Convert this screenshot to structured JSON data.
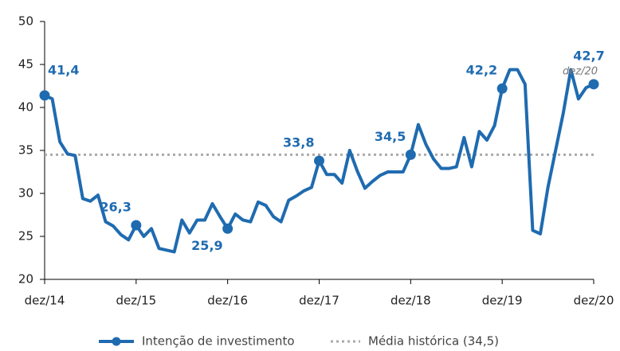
{
  "chart_data": {
    "type": "line",
    "categories": [
      "dez/14",
      null,
      null,
      null,
      null,
      null,
      null,
      null,
      null,
      null,
      null,
      null,
      "dez/15",
      null,
      null,
      null,
      null,
      null,
      null,
      null,
      null,
      null,
      null,
      null,
      "dez/16",
      null,
      null,
      null,
      null,
      null,
      null,
      null,
      null,
      null,
      null,
      null,
      "dez/17",
      null,
      null,
      null,
      null,
      null,
      null,
      null,
      null,
      null,
      null,
      null,
      "dez/18",
      null,
      null,
      null,
      null,
      null,
      null,
      null,
      null,
      null,
      null,
      null,
      "dez/19",
      null,
      null,
      null,
      null,
      null,
      null,
      null,
      null,
      null,
      null,
      null,
      "dez/20"
    ],
    "series": [
      {
        "name": "Intenção de investimento",
        "color": "#1f6bb0",
        "values": [
          41.4,
          41,
          36,
          34.6,
          34.4,
          29.4,
          29.1,
          29.8,
          26.7,
          26.2,
          25.2,
          24.6,
          26.3,
          25.0,
          25.9,
          23.6,
          23.4,
          23.2,
          26.9,
          25.4,
          26.9,
          26.9,
          28.8,
          27.3,
          25.9,
          27.6,
          26.9,
          26.7,
          29.0,
          28.6,
          27.3,
          26.7,
          29.2,
          29.7,
          30.3,
          30.7,
          33.8,
          32.2,
          32.2,
          31.2,
          35.0,
          32.6,
          30.6,
          31.4,
          32.1,
          32.5,
          32.5,
          32.5,
          34.5,
          38.0,
          35.7,
          34.0,
          32.9,
          32.9,
          33.1,
          36.5,
          33.1,
          37.2,
          36.2,
          37.9,
          42.2,
          44.4,
          44.4,
          42.7,
          25.7,
          25.3,
          30.7,
          35.0,
          39.3,
          44.4,
          41.0,
          42.3,
          42.7
        ],
        "value_labels": [
          "41,4",
          null,
          null,
          null,
          null,
          null,
          null,
          null,
          null,
          null,
          null,
          null,
          "26,3",
          null,
          null,
          null,
          null,
          null,
          null,
          null,
          null,
          null,
          null,
          null,
          "25,9",
          null,
          null,
          null,
          null,
          null,
          null,
          null,
          null,
          null,
          null,
          null,
          "33,8",
          null,
          null,
          null,
          null,
          null,
          null,
          null,
          null,
          null,
          null,
          null,
          "34,5",
          null,
          null,
          null,
          null,
          null,
          null,
          null,
          null,
          null,
          null,
          null,
          "42,2",
          null,
          null,
          null,
          null,
          null,
          null,
          null,
          null,
          null,
          null,
          null,
          "42,7"
        ]
      }
    ],
    "reference_line": {
      "name": "Média histórica (34,5)",
      "value": 34.5,
      "color": "#aaaaaa"
    },
    "annotation": "dez/20",
    "ylim": [
      20,
      50
    ],
    "yticks": [
      20,
      25,
      30,
      35,
      40,
      45,
      50
    ],
    "grid": false
  }
}
